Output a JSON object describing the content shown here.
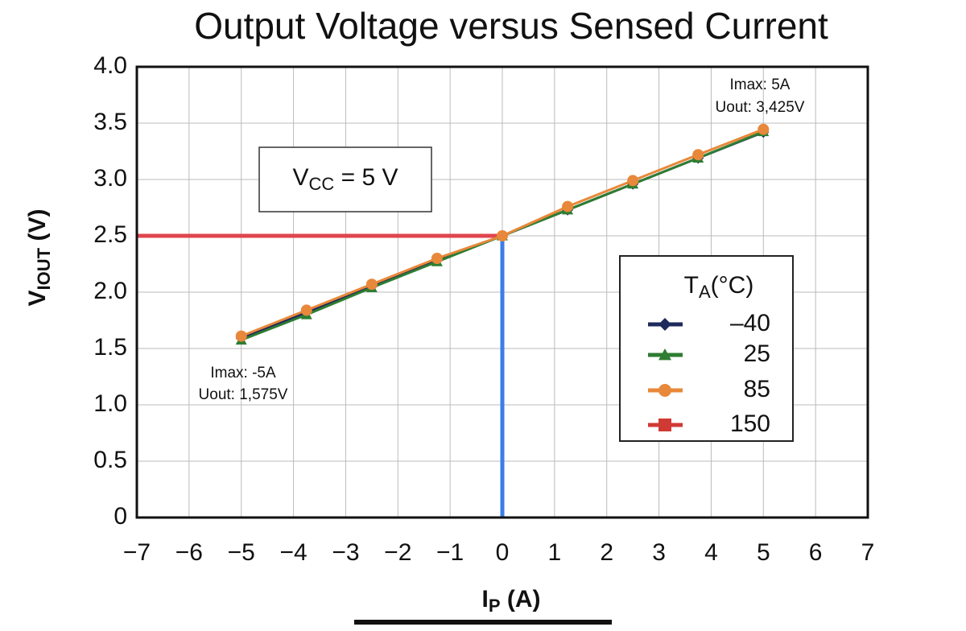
{
  "chart_data": {
    "type": "line",
    "title": "Output Voltage versus Sensed Current",
    "x_label": {
      "main": "I",
      "sub": "P",
      "rest": " (A)"
    },
    "y_label": {
      "main": "V",
      "sub": "IOUT",
      "rest": " (V)"
    },
    "xlim": [
      -7,
      7
    ],
    "ylim": [
      0,
      4
    ],
    "xticks": [
      {
        "value": -7,
        "label": "−7"
      },
      {
        "value": -6,
        "label": "−6"
      },
      {
        "value": -5,
        "label": "−5"
      },
      {
        "value": -4,
        "label": "−4"
      },
      {
        "value": -3,
        "label": "−3"
      },
      {
        "value": -2,
        "label": "−2"
      },
      {
        "value": -1,
        "label": "−1"
      },
      0,
      1,
      2,
      3,
      4,
      5,
      6,
      7
    ],
    "yticks": [
      0,
      {
        "value": 0.5,
        "label": "0.5"
      },
      {
        "value": 1,
        "label": "1.0"
      },
      {
        "value": 1.5,
        "label": "1.5"
      },
      {
        "value": 2,
        "label": "2.0"
      },
      {
        "value": 2.5,
        "label": "2.5"
      },
      {
        "value": 3,
        "label": "3.0"
      },
      {
        "value": 3.5,
        "label": "3.5"
      },
      {
        "value": 4,
        "label": "4.0"
      }
    ],
    "grid": true,
    "x": [
      -5,
      -3.75,
      -2.5,
      -1.25,
      0,
      1.25,
      2.5,
      3.75,
      5
    ],
    "legend_title": {
      "main": "T",
      "sub": "A",
      "rest": "(°C)"
    },
    "legend_position": "right",
    "series": [
      {
        "name": "–40",
        "color": "#1f2a5c",
        "marker": "diamond",
        "values": [
          1.59,
          1.82,
          2.05,
          2.28,
          2.5,
          2.73,
          2.96,
          3.19,
          3.42
        ]
      },
      {
        "name": "25",
        "color": "#2e7d32",
        "marker": "triangle",
        "values": [
          1.575,
          1.8,
          2.04,
          2.27,
          2.5,
          2.73,
          2.96,
          3.19,
          3.425
        ]
      },
      {
        "name": "85",
        "color": "#e8883a",
        "marker": "circle",
        "values": [
          1.61,
          1.84,
          2.07,
          2.3,
          2.5,
          2.76,
          2.99,
          3.22,
          3.445
        ]
      },
      {
        "name": "150",
        "color": "#d03a34",
        "marker": "square",
        "values": [
          null,
          null,
          null,
          null,
          null,
          null,
          null,
          null,
          null
        ]
      }
    ],
    "reference_lines": [
      {
        "color": "#e0454e",
        "x": [
          -7,
          0
        ],
        "y": [
          2.5,
          2.5
        ]
      },
      {
        "color": "#3b7de8",
        "x": [
          0,
          0
        ],
        "y": [
          0,
          2.5
        ]
      }
    ],
    "annotations": [
      "Imax: 5A",
      "Uout: 3,425V",
      "Imax: -5A",
      "Uout: 1,575V"
    ],
    "vcc_label": {
      "main": "V",
      "sub": "CC",
      "rest": " = 5 V"
    }
  }
}
